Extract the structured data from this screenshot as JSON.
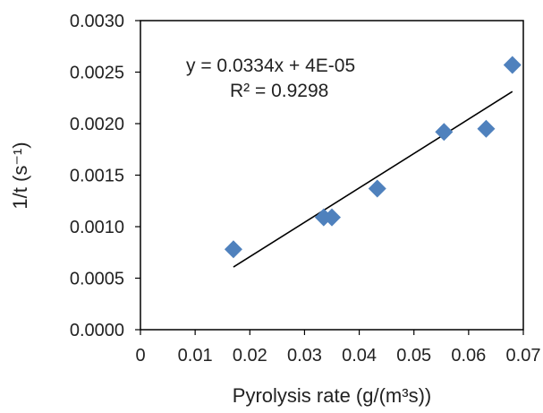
{
  "chart_data": {
    "type": "scatter",
    "xlabel": "Pyrolysis rate (g/(m³s))",
    "ylabel": "1/t (s⁻¹)",
    "xlim": [
      0,
      0.07
    ],
    "ylim": [
      0,
      0.003
    ],
    "x_ticks": [
      "0",
      "0.01",
      "0.02",
      "0.03",
      "0.04",
      "0.05",
      "0.06",
      "0.07"
    ],
    "y_ticks": [
      "0.0000",
      "0.0005",
      "0.0010",
      "0.0015",
      "0.0020",
      "0.0025",
      "0.0030"
    ],
    "grid": false,
    "legend": "none",
    "series": [
      {
        "color": "#4f81bd",
        "marker": "diamond",
        "points": [
          {
            "x": 0.017,
            "y": 0.00078
          },
          {
            "x": 0.0335,
            "y": 0.00109
          },
          {
            "x": 0.035,
            "y": 0.00109
          },
          {
            "x": 0.0433,
            "y": 0.00137
          },
          {
            "x": 0.0555,
            "y": 0.00192
          },
          {
            "x": 0.0632,
            "y": 0.00195
          },
          {
            "x": 0.068,
            "y": 0.00257
          }
        ]
      }
    ],
    "trendline": {
      "slope": 0.0334,
      "intercept": 4e-05,
      "x_range": [
        0.017,
        0.068
      ],
      "color": "#000000",
      "equation": "y = 0.0334x + 4E-05",
      "r_squared": "R² = 0.9298"
    }
  }
}
